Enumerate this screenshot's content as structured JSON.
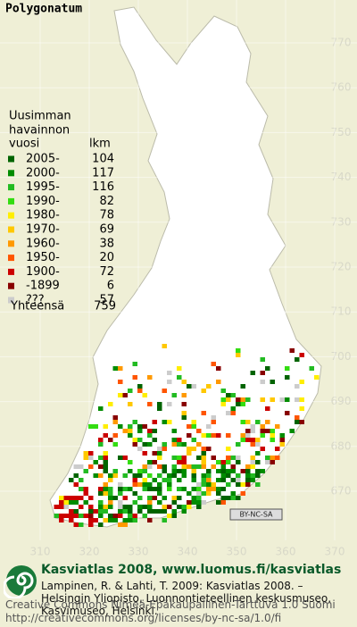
{
  "title": "Polygonatum",
  "legend": {
    "heading": [
      "Uusimman",
      "havainnon"
    ],
    "col_labels": [
      "vuosi",
      "lkm"
    ],
    "rows": [
      {
        "label": "2005-",
        "count": 104,
        "color": "#006400"
      },
      {
        "label": "2000-",
        "count": 117,
        "color": "#008c00"
      },
      {
        "label": "1995-",
        "count": 116,
        "color": "#22bb22"
      },
      {
        "label": "1990-",
        "count": 82,
        "color": "#33dd11"
      },
      {
        "label": "1980-",
        "count": 78,
        "color": "#ffee00"
      },
      {
        "label": "1970-",
        "count": 69,
        "color": "#ffc800"
      },
      {
        "label": "1960-",
        "count": 38,
        "color": "#ff9900"
      },
      {
        "label": "1950-",
        "count": 20,
        "color": "#ff5500"
      },
      {
        "label": "1900-",
        "count": 72,
        "color": "#cc0000"
      },
      {
        "label": "-1899",
        "count": 6,
        "color": "#880000"
      },
      {
        "label": "???",
        "count": 57,
        "color": "#cccccc"
      }
    ],
    "total": {
      "label": "Yhteensä",
      "count": 759
    }
  },
  "grid": {
    "y_labels": [
      770,
      760,
      750,
      740,
      730,
      720,
      710,
      700,
      690,
      680,
      670
    ],
    "x_labels": [
      310,
      320,
      330,
      340,
      350,
      360,
      370
    ]
  },
  "license_badge": "BY-NC-SA",
  "footer": {
    "site": "Kasviatlas 2008, www.luomus.fi/kasviatlas",
    "citation": [
      "Lampinen, R. & Lahti, T. 2009: Kasviatlas 2008. –",
      "Helsingin Yliopisto, Luonnontieteellinen keskusmuseo,",
      "Kasvimuseo, Helsinki."
    ],
    "license": [
      "Creative Commons Nimeä-Epäkaupallinen-Tarttuva 1.0 Suomi",
      "http://creativecommons.org/licenses/by-nc-sa/1.0/fi"
    ]
  }
}
